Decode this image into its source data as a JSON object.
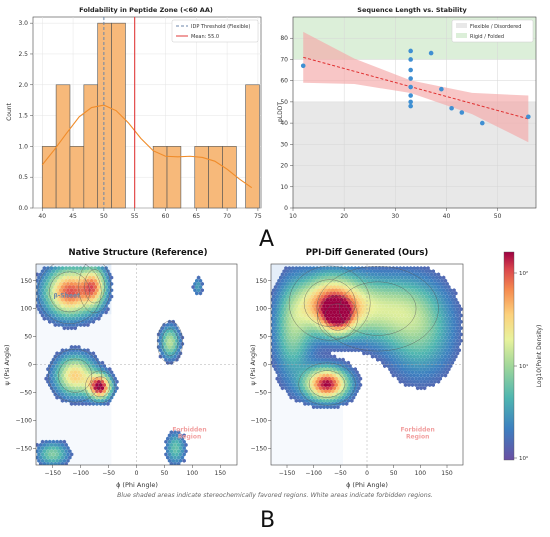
{
  "panel_labels": {
    "a": "A",
    "b": "B"
  },
  "footnote": "Blue shaded areas indicate stereochemically favored regions. White areas indicate forbidden regions.",
  "colors": {
    "hist_fill": "#f7b97a",
    "hist_edge": "#555555",
    "kde": "#f08c2a",
    "threshold": "#6b86a8",
    "mean": "#e03b3b",
    "scatter": "#3f8fd2",
    "regression": "#e03030",
    "band": "#f4a8a8",
    "flexible_bg": "#e8e8e8",
    "rigid_bg": "#dcefd9"
  },
  "chart_data": [
    {
      "type": "bar",
      "title": "Foldability in Peptide Zone (<60 AA)",
      "xlabel": "",
      "ylabel": "Count",
      "xlim": [
        38.5,
        75.5
      ],
      "ylim": [
        0,
        3.1
      ],
      "xticks": [
        40,
        45,
        50,
        55,
        60,
        65,
        70,
        75
      ],
      "yticks": [
        0.0,
        0.5,
        1.0,
        1.5,
        2.0,
        2.5,
        3.0
      ],
      "bin_width": 2.25,
      "bins": [
        {
          "x": 40.0,
          "count": 1
        },
        {
          "x": 42.25,
          "count": 2
        },
        {
          "x": 44.5,
          "count": 1
        },
        {
          "x": 46.75,
          "count": 2
        },
        {
          "x": 49.0,
          "count": 3
        },
        {
          "x": 51.25,
          "count": 3
        },
        {
          "x": 53.5,
          "count": 0
        },
        {
          "x": 55.75,
          "count": 0
        },
        {
          "x": 58.0,
          "count": 1
        },
        {
          "x": 60.25,
          "count": 1
        },
        {
          "x": 62.5,
          "count": 0
        },
        {
          "x": 64.75,
          "count": 1
        },
        {
          "x": 67.0,
          "count": 1
        },
        {
          "x": 69.25,
          "count": 1
        },
        {
          "x": 71.5,
          "count": 0
        },
        {
          "x": 73.0,
          "count": 2
        }
      ],
      "kde": {
        "x": [
          40,
          42,
          44,
          46,
          48,
          50,
          52,
          54,
          56,
          58,
          60,
          62,
          64,
          66,
          68,
          70,
          72,
          74
        ],
        "y": [
          0.7,
          0.95,
          1.22,
          1.48,
          1.63,
          1.67,
          1.58,
          1.38,
          1.13,
          0.93,
          0.84,
          0.83,
          0.84,
          0.82,
          0.76,
          0.63,
          0.47,
          0.33
        ]
      },
      "threshold": 50,
      "mean": 55.0,
      "legend": [
        {
          "label": "IDP Threshold (Flexible)",
          "style": "dashed"
        },
        {
          "label": "Mean: 55.0",
          "style": "solid"
        }
      ],
      "legend_position": "upper-right"
    },
    {
      "type": "scatter",
      "title": "Sequence Length vs. Stability",
      "xlabel": "",
      "ylabel": "pLDDT",
      "xlim": [
        10,
        57.5
      ],
      "ylim": [
        0,
        90
      ],
      "xticks": [
        10,
        20,
        30,
        40,
        50
      ],
      "yticks": [
        0,
        10,
        20,
        30,
        40,
        50,
        60,
        70,
        80
      ],
      "regions": [
        {
          "label": "Flexible / Disordered",
          "y_range": [
            0,
            50
          ]
        },
        {
          "label": "Rigid / Folded",
          "y_range": [
            70,
            90
          ]
        }
      ],
      "points": [
        {
          "x": 12,
          "y": 67
        },
        {
          "x": 33,
          "y": 74
        },
        {
          "x": 33,
          "y": 70
        },
        {
          "x": 33,
          "y": 65
        },
        {
          "x": 33,
          "y": 61
        },
        {
          "x": 33,
          "y": 57
        },
        {
          "x": 33,
          "y": 53
        },
        {
          "x": 33,
          "y": 50
        },
        {
          "x": 33,
          "y": 48
        },
        {
          "x": 37,
          "y": 73
        },
        {
          "x": 39,
          "y": 56
        },
        {
          "x": 41,
          "y": 47
        },
        {
          "x": 43,
          "y": 45
        },
        {
          "x": 47,
          "y": 40
        },
        {
          "x": 56,
          "y": 43
        }
      ],
      "regression": {
        "x": [
          12,
          56
        ],
        "y": [
          71,
          42
        ]
      },
      "band_halfwidth": {
        "x": [
          12,
          22,
          33,
          45,
          56
        ],
        "w": [
          12,
          6,
          3,
          5,
          11
        ]
      },
      "legend_position": "upper-right"
    },
    {
      "type": "heatmap",
      "title": "Native Structure (Reference)",
      "xlabel": "ϕ (Phi Angle)",
      "ylabel": "ψ (Psi Angle)",
      "xlim": [
        -180,
        180
      ],
      "ylim": [
        -180,
        180
      ],
      "xticks": [
        -150,
        -100,
        -50,
        0,
        50,
        100,
        150
      ],
      "yticks": [
        -150,
        -100,
        -50,
        0,
        50,
        100,
        150
      ],
      "annotations": [
        {
          "text": "β-Sheet",
          "x": -125,
          "y": 120
        },
        {
          "text": "Forbidden Region",
          "x": 95,
          "y": -120
        }
      ],
      "clusters": [
        {
          "phi": -120,
          "psi": 130,
          "sphi": 30,
          "spsi": 30,
          "weight": 0.9
        },
        {
          "phi": -75,
          "psi": 140,
          "sphi": 15,
          "spsi": 25,
          "weight": 0.6
        },
        {
          "phi": -110,
          "psi": -20,
          "sphi": 25,
          "spsi": 25,
          "weight": 0.7
        },
        {
          "phi": -65,
          "psi": -40,
          "sphi": 14,
          "spsi": 15,
          "weight": 1.0
        },
        {
          "phi": 60,
          "psi": 40,
          "sphi": 12,
          "spsi": 20,
          "weight": 0.5
        },
        {
          "phi": 70,
          "psi": -150,
          "sphi": 12,
          "spsi": 20,
          "weight": 0.35
        },
        {
          "phi": -150,
          "psi": -160,
          "sphi": 20,
          "spsi": 15,
          "weight": 0.4
        },
        {
          "phi": 110,
          "psi": 140,
          "sphi": 6,
          "spsi": 12,
          "weight": 0.25
        }
      ]
    },
    {
      "type": "heatmap",
      "title": "PPI-Diff Generated (Ours)",
      "xlabel": "ϕ (Phi Angle)",
      "ylabel": "ψ (Psi Angle)",
      "xlim": [
        -180,
        180
      ],
      "ylim": [
        -180,
        180
      ],
      "xticks": [
        -150,
        -100,
        -50,
        0,
        50,
        100,
        150
      ],
      "yticks": [
        -150,
        -100,
        -50,
        0,
        50,
        100,
        150
      ],
      "annotations": [
        {
          "text": "Forbidden Region",
          "x": 95,
          "y": -120
        }
      ],
      "clusters": [
        {
          "phi": -70,
          "psi": 110,
          "sphi": 40,
          "spsi": 35,
          "weight": 0.8
        },
        {
          "phi": -55,
          "psi": 85,
          "sphi": 20,
          "spsi": 20,
          "weight": 0.5
        },
        {
          "phi": -75,
          "psi": -35,
          "sphi": 28,
          "spsi": 20,
          "weight": 1.0
        },
        {
          "phi": -140,
          "psi": 60,
          "sphi": 25,
          "spsi": 60,
          "weight": 0.4
        },
        {
          "phi": 20,
          "psi": 100,
          "sphi": 60,
          "spsi": 40,
          "weight": 0.45
        },
        {
          "phi": 100,
          "psi": 60,
          "sphi": 45,
          "spsi": 60,
          "weight": 0.35
        }
      ],
      "colorbar": {
        "label": "Log10(Point Density)",
        "tick_labels": [
          "10⁰",
          "10¹",
          "10²"
        ]
      }
    }
  ]
}
